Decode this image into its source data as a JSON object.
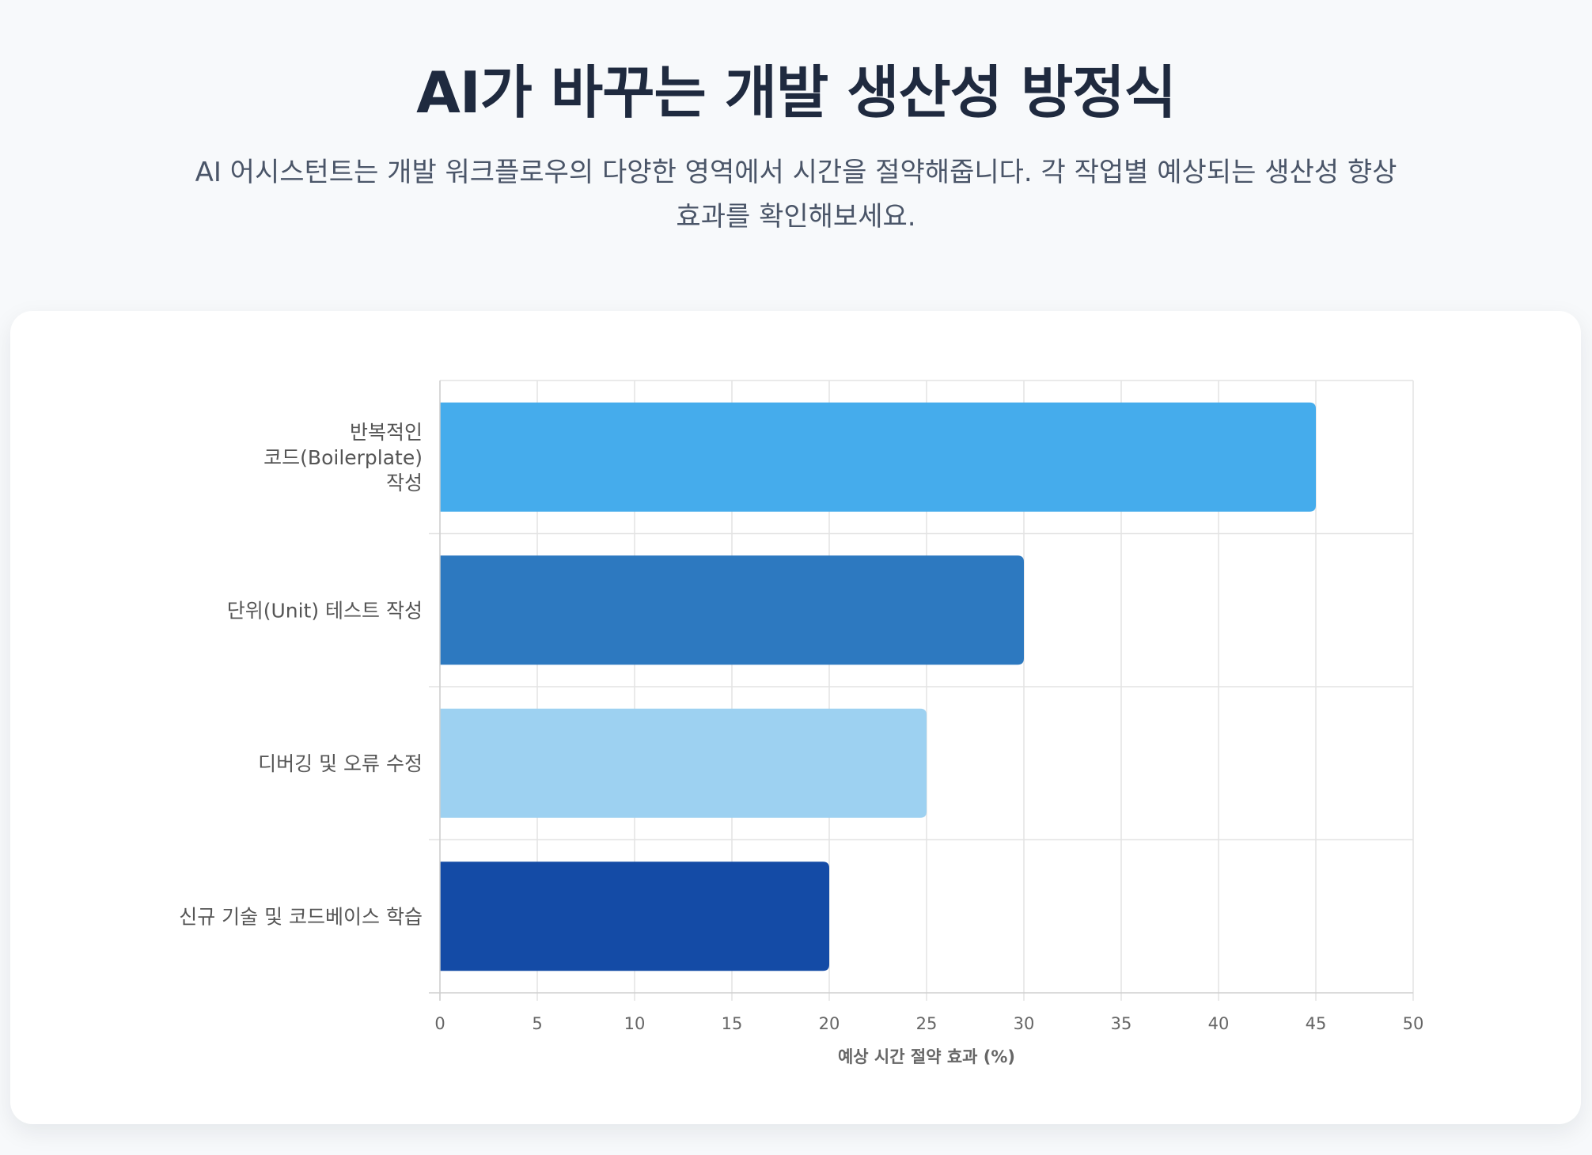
{
  "header": {
    "title": "AI가 바꾸는 개발 생산성 방정식",
    "subtitle": "AI 어시스턴트는 개발 워크플로우의 다양한 영역에서 시간을 절약해줍니다. 각 작업별 예상되는 생산성 향상 효과를 확인해보세요."
  },
  "chart_data": {
    "type": "bar",
    "orientation": "horizontal",
    "categories": [
      [
        "반복적인",
        "코드(Boilerplate)",
        "작성"
      ],
      [
        "단위(Unit) 테스트 작성"
      ],
      [
        "디버깅 및 오류 수정"
      ],
      [
        "신규 기술 및 코드베이스 학습"
      ]
    ],
    "values": [
      45,
      30,
      25,
      20
    ],
    "colors": [
      "#45acec",
      "#2d79c0",
      "#9dd1f1",
      "#144ba6"
    ],
    "xlabel": "예상 시간 절약 효과 (%)",
    "ylabel": "",
    "xlim": [
      0,
      50
    ],
    "xticks": [
      0,
      5,
      10,
      15,
      20,
      25,
      30,
      35,
      40,
      45,
      50
    ],
    "grid": true,
    "legend": "none"
  }
}
